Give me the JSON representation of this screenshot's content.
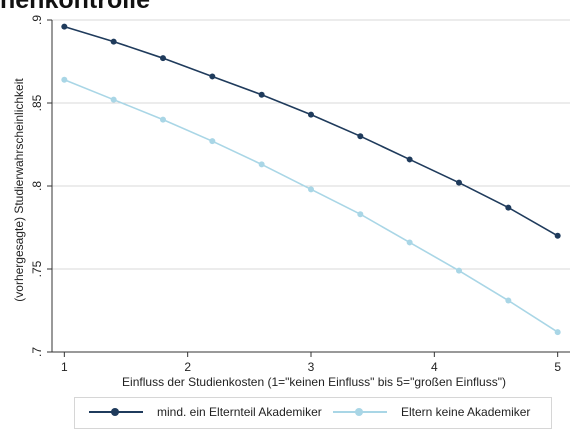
{
  "page": {
    "heading": "henkontrolle"
  },
  "chart_data": {
    "type": "line",
    "x": [
      1,
      1.4,
      1.8,
      2.2,
      2.6,
      3,
      3.4,
      3.8,
      4.2,
      4.6,
      5
    ],
    "series": [
      {
        "name": "mind. ein Elternteil Akademiker",
        "color": "#1f3b5c",
        "values": [
          0.896,
          0.887,
          0.877,
          0.866,
          0.855,
          0.843,
          0.83,
          0.816,
          0.802,
          0.787,
          0.77
        ]
      },
      {
        "name": "Eltern keine Akademiker",
        "color": "#a9d6e6",
        "values": [
          0.864,
          0.852,
          0.84,
          0.827,
          0.813,
          0.798,
          0.783,
          0.766,
          0.749,
          0.731,
          0.712
        ]
      }
    ],
    "xlabel": "Einfluss der Studienkosten (1=\"keinen Einfluss\" bis 5=\"großen Einfluss\")",
    "ylabel": "(vorhergesagte) Studierwahrscheinlichkeit",
    "xlim": [
      0.9,
      5.1
    ],
    "ylim": [
      0.7,
      0.9
    ],
    "xticks": [
      1,
      2,
      3,
      4,
      5
    ],
    "xtick_labels": [
      "1",
      "2",
      "3",
      "4",
      "5"
    ],
    "yticks": [
      0.7,
      0.75,
      0.8,
      0.85,
      0.9
    ],
    "ytick_labels": [
      ".7",
      ".75",
      ".8",
      ".85",
      ".9"
    ],
    "grid": "horizontal",
    "legend_position": "bottom"
  }
}
